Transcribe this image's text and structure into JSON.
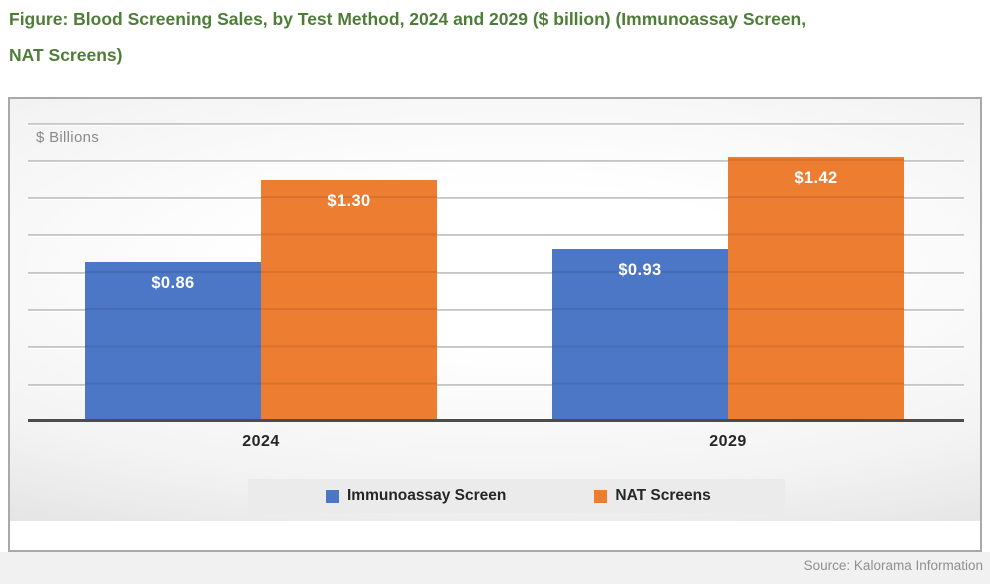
{
  "title": {
    "line1": "Figure: Blood Screening Sales, by Test Method, 2024 and 2029 ($ billion) (Immunoassay Screen,",
    "line2": "NAT Screens)"
  },
  "source": "Source: Kalorama Information",
  "colors": {
    "title_green": "#4E7D38",
    "bar_blue": "#4C77C6",
    "bar_orange": "#ED7D31",
    "legend_band": "#ebebeb",
    "axis": "#4c4c4c",
    "gridline": "#c2c2c2",
    "footer_strip": "#f1f1f1"
  },
  "chart_data": {
    "type": "bar",
    "title": "Blood Screening Sales, by Test Method, 2024 and 2029 ($ billion)",
    "ylabel": "$ Billions",
    "xlabel": "",
    "categories": [
      "2024",
      "2029"
    ],
    "series": [
      {
        "name": "Immunoassay Screen",
        "color": "#4C77C6",
        "values": [
          0.86,
          0.93
        ],
        "labels": [
          "$0.86",
          "$0.93"
        ]
      },
      {
        "name": "NAT Screens",
        "color": "#ED7D31",
        "values": [
          1.3,
          1.42
        ],
        "labels": [
          "$1.30",
          "$1.42"
        ]
      }
    ],
    "ylim": [
      0,
      1.7
    ],
    "gridline_step": 0.2,
    "grid": true,
    "y_tick_labels_shown": false,
    "legend_position": "bottom"
  }
}
